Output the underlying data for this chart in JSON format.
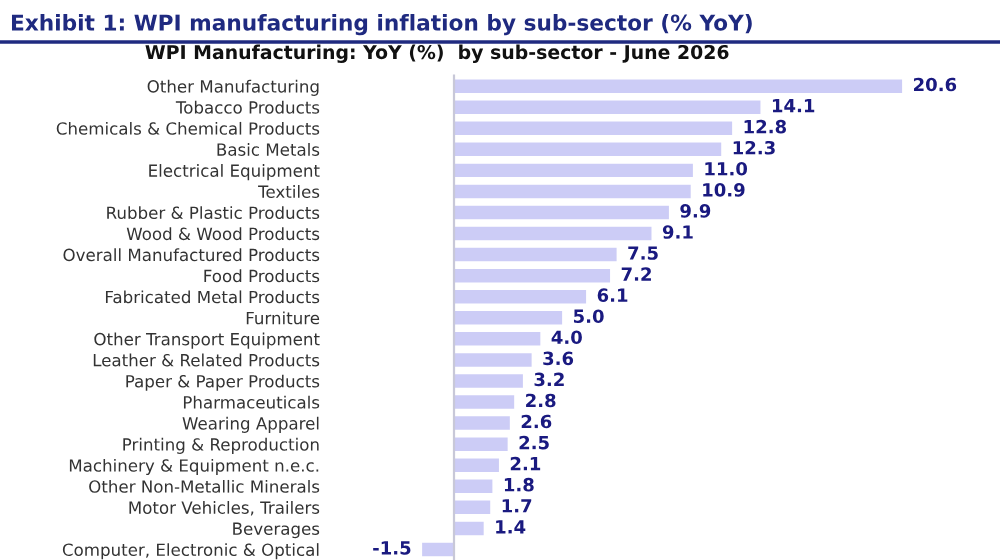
{
  "chart_data": {
    "type": "bar",
    "orientation": "horizontal",
    "title": "WPI Manufacturing: YoY (%)  by sub-sector - June 2026",
    "annotations": [
      "Exhibit 1: WPI manufacturing inflation by sub-sector (% YoY)"
    ],
    "categories": [
      "Other Manufacturing",
      "Tobacco Products",
      "Chemicals & Chemical Products",
      "Basic Metals",
      "Electrical Equipment",
      "Textiles",
      "Rubber & Plastic Products",
      "Wood & Wood Products",
      "Overall Manufactured Products",
      "Food Products",
      "Fabricated Metal Products",
      "Furniture",
      "Other Transport Equipment",
      "Leather & Related Products",
      "Paper & Paper Products",
      "Pharmaceuticals",
      "Wearing Apparel",
      "Printing & Reproduction",
      "Machinery & Equipment n.e.c.",
      "Other Non-Metallic Minerals",
      "Motor Vehicles, Trailers",
      "Beverages",
      "Computer, Electronic & Optical"
    ],
    "values": [
      20.6,
      14.1,
      12.8,
      12.3,
      11.0,
      10.9,
      9.9,
      9.1,
      7.5,
      7.2,
      6.1,
      5.0,
      4.0,
      3.6,
      3.2,
      2.8,
      2.6,
      2.5,
      2.1,
      1.8,
      1.7,
      1.4,
      -1.5
    ],
    "value_labels": [
      "20.6",
      "14.1",
      "12.8",
      "12.3",
      "11.0",
      "10.9",
      "9.9",
      "9.1",
      "7.5",
      "7.2",
      "6.1",
      "5.0",
      "4.0",
      "3.6",
      "3.2",
      "2.8",
      "2.6",
      "2.5",
      "2.1",
      "1.8",
      "1.7",
      "1.4",
      "-1.5"
    ],
    "color": "#ccccf6",
    "grid": false,
    "legend": false
  }
}
